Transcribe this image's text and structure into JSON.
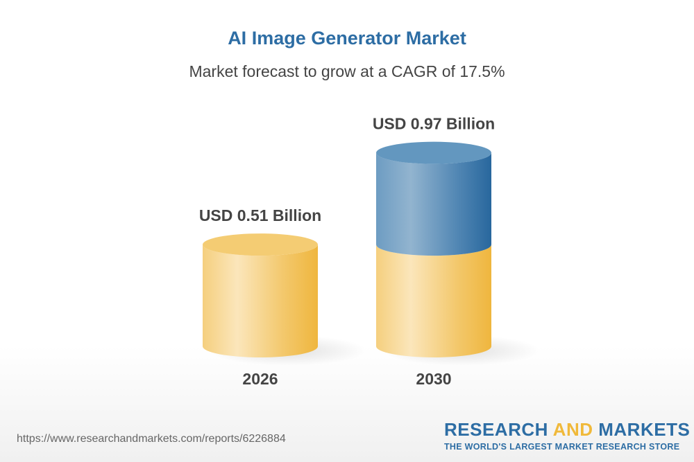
{
  "chart_data": {
    "type": "bar",
    "title": "AI Image Generator Market",
    "subtitle": "Market forecast to grow at a CAGR of 17.5%",
    "categories": [
      "2026",
      "2030"
    ],
    "values": [
      0.51,
      0.97
    ],
    "value_labels": [
      "USD 0.51 Billion",
      "USD 0.97 Billion"
    ],
    "unit": "USD Billion",
    "style": "3d-cylinder",
    "colors": {
      "base": "#f2c05a",
      "growth": "#2d6da4"
    },
    "grid": false
  },
  "footer": {
    "url": "https://www.researchandmarkets.com/reports/6226884",
    "logo_part1": "RESEARCH ",
    "logo_part2": "AND",
    "logo_part3": " MARKETS",
    "tagline": "THE WORLD'S LARGEST MARKET RESEARCH STORE"
  }
}
